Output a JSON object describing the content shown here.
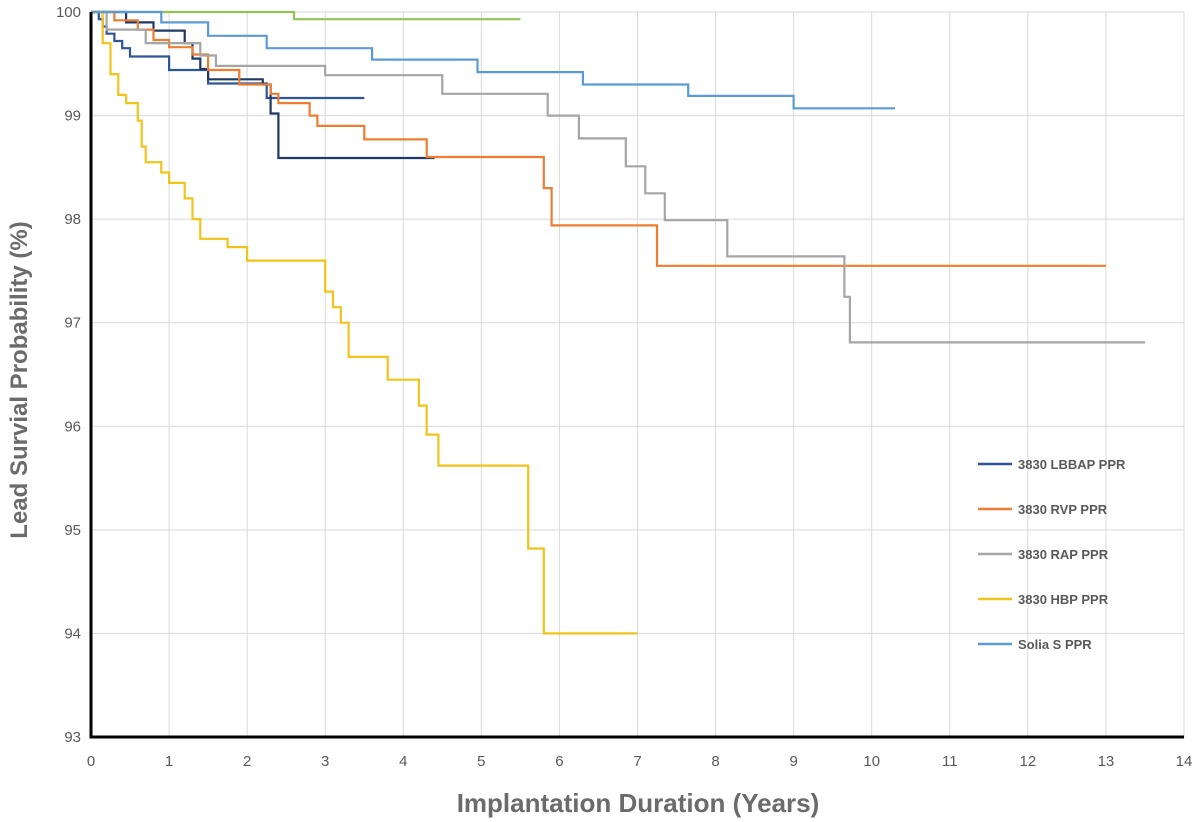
{
  "chart_data": {
    "type": "line",
    "xlabel": "Implantation Duration (Years)",
    "ylabel": "Lead Survial Probability (%)",
    "xlim": [
      0,
      14
    ],
    "ylim": [
      93,
      100
    ],
    "x_ticks": [
      "0",
      "1",
      "2",
      "3",
      "4",
      "5",
      "6",
      "7",
      "8",
      "9",
      "10",
      "11",
      "12",
      "13",
      "14"
    ],
    "y_ticks": [
      "93",
      "94",
      "95",
      "96",
      "97",
      "98",
      "99",
      "100"
    ],
    "grid": true,
    "legend_position": "right",
    "series": [
      {
        "color": "#92c353",
        "points": [
          [
            0,
            100
          ],
          [
            2.6,
            100
          ],
          [
            2.6,
            99.93
          ],
          [
            5.5,
            99.93
          ]
        ]
      },
      {
        "name": "3830 LBBAP PPR",
        "color": "#2e5597",
        "points": [
          [
            0,
            100
          ],
          [
            0.1,
            100
          ],
          [
            0.1,
            99.93
          ],
          [
            0.15,
            99.93
          ],
          [
            0.15,
            99.86
          ],
          [
            0.2,
            99.86
          ],
          [
            0.2,
            99.79
          ],
          [
            0.3,
            99.79
          ],
          [
            0.3,
            99.72
          ],
          [
            0.4,
            99.72
          ],
          [
            0.4,
            99.65
          ],
          [
            0.5,
            99.65
          ],
          [
            0.5,
            99.57
          ],
          [
            1.0,
            99.57
          ],
          [
            1.0,
            99.44
          ],
          [
            1.5,
            99.44
          ],
          [
            1.5,
            99.31
          ],
          [
            2.25,
            99.31
          ],
          [
            2.25,
            99.17
          ],
          [
            3.5,
            99.17
          ]
        ]
      },
      {
        "color": "#1f3864",
        "points": [
          [
            0,
            100
          ],
          [
            0.45,
            100
          ],
          [
            0.45,
            99.9
          ],
          [
            0.8,
            99.9
          ],
          [
            0.8,
            99.82
          ],
          [
            1.2,
            99.82
          ],
          [
            1.2,
            99.7
          ],
          [
            1.3,
            99.7
          ],
          [
            1.3,
            99.55
          ],
          [
            1.4,
            99.55
          ],
          [
            1.4,
            99.45
          ],
          [
            1.5,
            99.45
          ],
          [
            1.5,
            99.35
          ],
          [
            2.2,
            99.35
          ],
          [
            2.2,
            99.3
          ],
          [
            2.3,
            99.3
          ],
          [
            2.3,
            99.02
          ],
          [
            2.4,
            99.02
          ],
          [
            2.4,
            98.59
          ],
          [
            4.4,
            98.59
          ]
        ]
      },
      {
        "name": "3830 RVP PPR",
        "color": "#ed7d31",
        "points": [
          [
            0,
            100
          ],
          [
            0.3,
            100
          ],
          [
            0.3,
            99.92
          ],
          [
            0.6,
            99.92
          ],
          [
            0.6,
            99.83
          ],
          [
            0.8,
            99.83
          ],
          [
            0.8,
            99.73
          ],
          [
            1.0,
            99.73
          ],
          [
            1.0,
            99.66
          ],
          [
            1.3,
            99.66
          ],
          [
            1.3,
            99.59
          ],
          [
            1.5,
            99.59
          ],
          [
            1.5,
            99.44
          ],
          [
            1.9,
            99.44
          ],
          [
            1.9,
            99.3
          ],
          [
            2.3,
            99.3
          ],
          [
            2.3,
            99.21
          ],
          [
            2.4,
            99.21
          ],
          [
            2.4,
            99.12
          ],
          [
            2.8,
            99.12
          ],
          [
            2.8,
            99.0
          ],
          [
            2.9,
            99.0
          ],
          [
            2.9,
            98.9
          ],
          [
            3.5,
            98.9
          ],
          [
            3.5,
            98.77
          ],
          [
            4.3,
            98.77
          ],
          [
            4.3,
            98.6
          ],
          [
            5.8,
            98.6
          ],
          [
            5.8,
            98.3
          ],
          [
            5.9,
            98.3
          ],
          [
            5.9,
            97.94
          ],
          [
            7.25,
            97.94
          ],
          [
            7.25,
            97.55
          ],
          [
            13.0,
            97.55
          ]
        ]
      },
      {
        "name": "3830 RAP PPR",
        "color": "#a5a5a5",
        "points": [
          [
            0,
            100
          ],
          [
            0.2,
            100
          ],
          [
            0.2,
            99.83
          ],
          [
            0.7,
            99.83
          ],
          [
            0.7,
            99.7
          ],
          [
            1.4,
            99.7
          ],
          [
            1.4,
            99.58
          ],
          [
            1.6,
            99.58
          ],
          [
            1.6,
            99.48
          ],
          [
            3.0,
            99.48
          ],
          [
            3.0,
            99.39
          ],
          [
            4.5,
            99.39
          ],
          [
            4.5,
            99.21
          ],
          [
            5.85,
            99.21
          ],
          [
            5.85,
            99.0
          ],
          [
            6.25,
            99.0
          ],
          [
            6.25,
            98.78
          ],
          [
            6.85,
            98.78
          ],
          [
            6.85,
            98.51
          ],
          [
            7.1,
            98.51
          ],
          [
            7.1,
            98.25
          ],
          [
            7.35,
            98.25
          ],
          [
            7.35,
            97.99
          ],
          [
            8.15,
            97.99
          ],
          [
            8.15,
            97.64
          ],
          [
            9.65,
            97.64
          ],
          [
            9.65,
            97.25
          ],
          [
            9.72,
            97.25
          ],
          [
            9.72,
            96.81
          ],
          [
            13.5,
            96.81
          ]
        ]
      },
      {
        "name": "3830 HBP PPR",
        "color": "#f2c318",
        "points": [
          [
            0,
            100
          ],
          [
            0.15,
            100
          ],
          [
            0.15,
            99.7
          ],
          [
            0.25,
            99.7
          ],
          [
            0.25,
            99.4
          ],
          [
            0.35,
            99.4
          ],
          [
            0.35,
            99.2
          ],
          [
            0.45,
            99.2
          ],
          [
            0.45,
            99.12
          ],
          [
            0.6,
            99.12
          ],
          [
            0.6,
            98.95
          ],
          [
            0.65,
            98.95
          ],
          [
            0.65,
            98.7
          ],
          [
            0.7,
            98.7
          ],
          [
            0.7,
            98.55
          ],
          [
            0.9,
            98.55
          ],
          [
            0.9,
            98.45
          ],
          [
            1.0,
            98.45
          ],
          [
            1.0,
            98.35
          ],
          [
            1.2,
            98.35
          ],
          [
            1.2,
            98.2
          ],
          [
            1.3,
            98.2
          ],
          [
            1.3,
            98.0
          ],
          [
            1.4,
            98.0
          ],
          [
            1.4,
            97.81
          ],
          [
            1.75,
            97.81
          ],
          [
            1.75,
            97.73
          ],
          [
            2.0,
            97.73
          ],
          [
            2.0,
            97.6
          ],
          [
            3.0,
            97.6
          ],
          [
            3.0,
            97.3
          ],
          [
            3.1,
            97.3
          ],
          [
            3.1,
            97.15
          ],
          [
            3.2,
            97.15
          ],
          [
            3.2,
            97.0
          ],
          [
            3.3,
            97.0
          ],
          [
            3.3,
            96.67
          ],
          [
            3.8,
            96.67
          ],
          [
            3.8,
            96.45
          ],
          [
            4.2,
            96.45
          ],
          [
            4.2,
            96.2
          ],
          [
            4.3,
            96.2
          ],
          [
            4.3,
            95.92
          ],
          [
            4.45,
            95.92
          ],
          [
            4.45,
            95.62
          ],
          [
            5.6,
            95.62
          ],
          [
            5.6,
            94.82
          ],
          [
            5.8,
            94.82
          ],
          [
            5.8,
            94.0
          ],
          [
            7.0,
            94.0
          ]
        ]
      },
      {
        "name": "Solia S PPR",
        "color": "#5b9bd5",
        "points": [
          [
            0,
            100
          ],
          [
            0.9,
            100
          ],
          [
            0.9,
            99.9
          ],
          [
            1.5,
            99.9
          ],
          [
            1.5,
            99.77
          ],
          [
            2.25,
            99.77
          ],
          [
            2.25,
            99.65
          ],
          [
            3.6,
            99.65
          ],
          [
            3.6,
            99.54
          ],
          [
            4.95,
            99.54
          ],
          [
            4.95,
            99.42
          ],
          [
            6.3,
            99.42
          ],
          [
            6.3,
            99.3
          ],
          [
            7.65,
            99.3
          ],
          [
            7.65,
            99.19
          ],
          [
            9.0,
            99.19
          ],
          [
            9.0,
            99.07
          ],
          [
            10.3,
            99.07
          ]
        ]
      }
    ]
  }
}
